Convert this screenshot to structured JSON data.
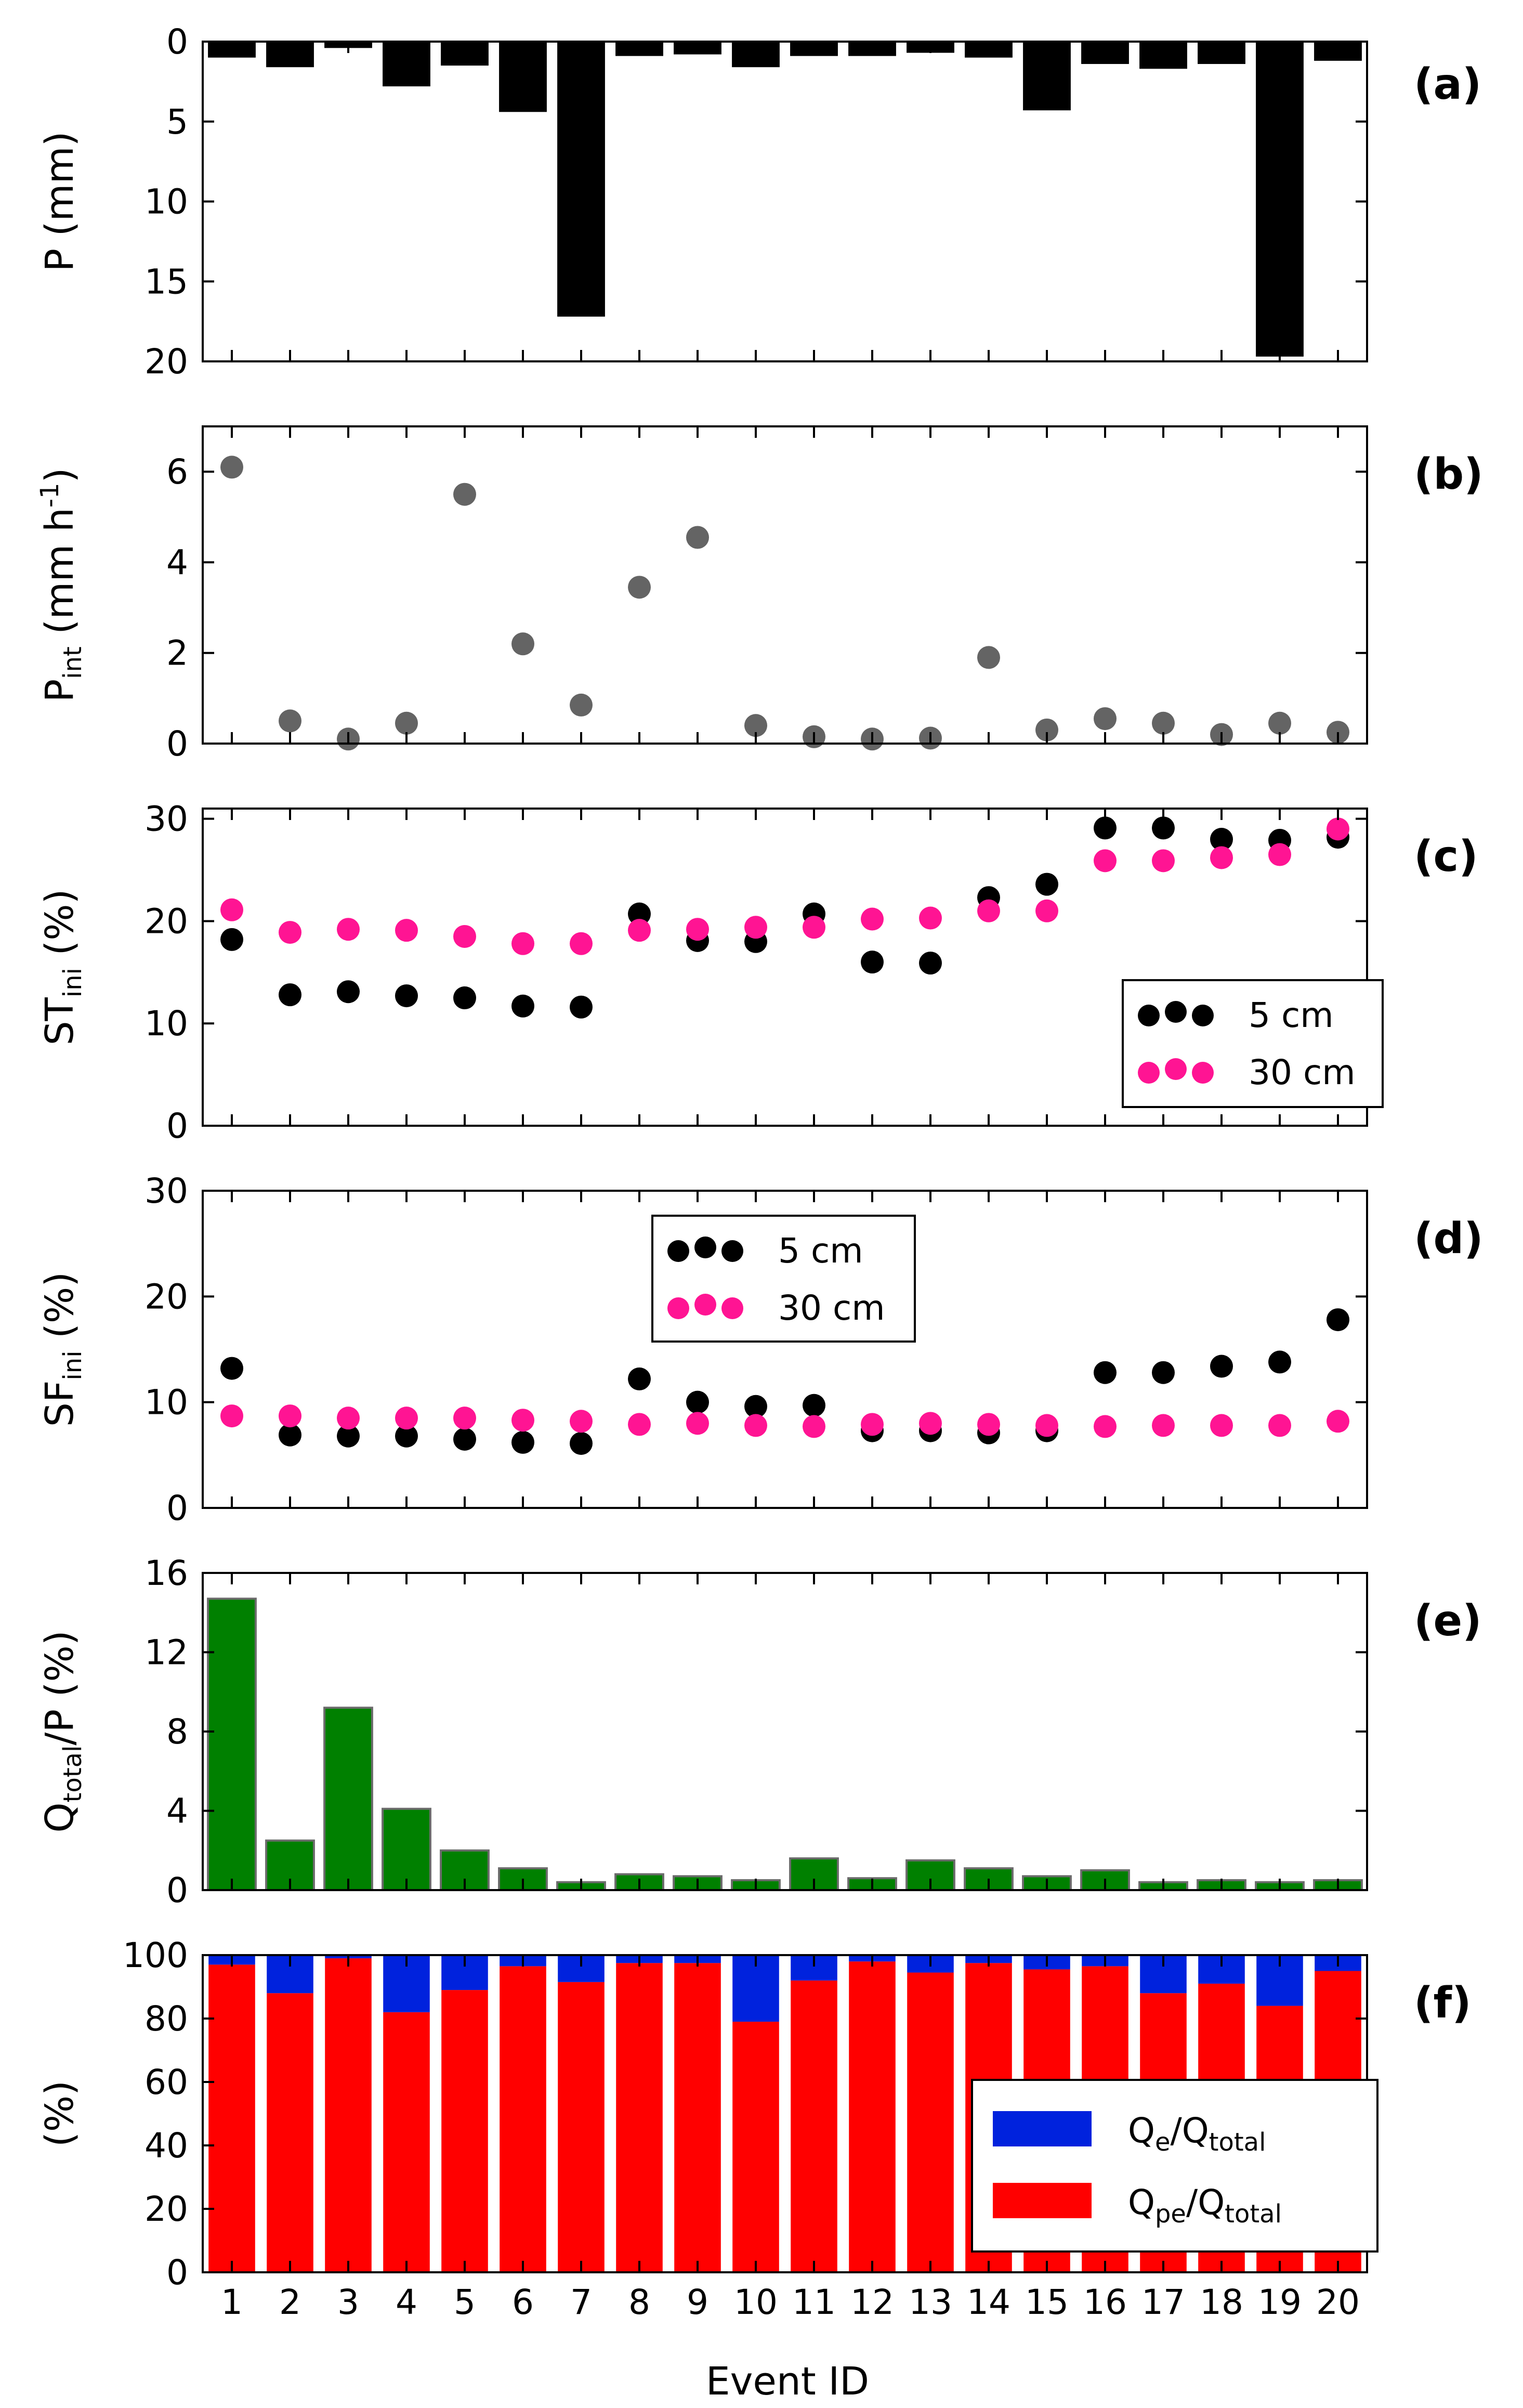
{
  "figure": {
    "xlabel": "Event ID"
  },
  "chart_data": [
    {
      "id": "a",
      "type": "bar",
      "panel_label": "(a)",
      "title": "",
      "ylabel": "P (mm)",
      "ylim": [
        0,
        20
      ],
      "y_inverted": true,
      "yticks": [
        0,
        5,
        10,
        15,
        20
      ],
      "xticks": [],
      "color": "#000000",
      "categories": [
        1,
        2,
        3,
        4,
        5,
        6,
        7,
        8,
        9,
        10,
        11,
        12,
        13,
        14,
        15,
        16,
        17,
        18,
        19,
        20
      ],
      "values": [
        1.0,
        1.6,
        0.4,
        2.8,
        1.5,
        4.4,
        17.2,
        0.9,
        0.8,
        1.6,
        0.9,
        0.9,
        0.7,
        1.0,
        4.3,
        1.4,
        1.7,
        1.4,
        19.7,
        1.2
      ]
    },
    {
      "id": "b",
      "type": "scatter",
      "panel_label": "(b)",
      "ylabel_main": "P",
      "ylabel_sub": "int",
      "ylabel_rest": " (mm h",
      "ylabel_sup": "-1",
      "ylabel_end": ")",
      "ylim": [
        0,
        7
      ],
      "yticks": [
        0,
        2,
        4,
        6
      ],
      "xticks": [],
      "series": [
        {
          "name": "P_int",
          "color": "#646464",
          "x": [
            1,
            2,
            3,
            4,
            5,
            6,
            7,
            8,
            9,
            10,
            11,
            12,
            13,
            14,
            15,
            16,
            17,
            18,
            19,
            20
          ],
          "values": [
            6.1,
            0.5,
            0.1,
            0.45,
            5.5,
            2.2,
            0.85,
            3.45,
            4.55,
            0.4,
            0.15,
            0.1,
            0.12,
            1.9,
            0.3,
            0.55,
            0.45,
            0.2,
            0.45,
            0.25
          ]
        }
      ]
    },
    {
      "id": "c",
      "type": "scatter",
      "panel_label": "(c)",
      "ylabel_main": "ST",
      "ylabel_sub": "ini",
      "ylabel_rest": " (%)",
      "ylim": [
        0,
        31
      ],
      "yticks": [
        0,
        10,
        20,
        30
      ],
      "xticks": [],
      "legend": "bottom-right",
      "series": [
        {
          "name": "5 cm",
          "color": "#000000",
          "x": [
            1,
            2,
            3,
            4,
            5,
            6,
            7,
            8,
            9,
            10,
            11,
            12,
            13,
            14,
            15,
            16,
            17,
            18,
            19,
            20
          ],
          "values": [
            18.2,
            12.8,
            13.1,
            12.7,
            12.5,
            11.7,
            11.6,
            20.7,
            18.1,
            18.0,
            20.7,
            16.0,
            15.9,
            22.3,
            23.6,
            29.1,
            29.1,
            28.0,
            27.9,
            28.2
          ]
        },
        {
          "name": "30 cm",
          "color": "#ff1493",
          "x": [
            1,
            2,
            3,
            4,
            5,
            6,
            7,
            8,
            9,
            10,
            11,
            12,
            13,
            14,
            15,
            16,
            17,
            18,
            19,
            20
          ],
          "values": [
            21.1,
            18.9,
            19.2,
            19.1,
            18.5,
            17.8,
            17.8,
            19.1,
            19.2,
            19.4,
            19.4,
            20.2,
            20.3,
            21.0,
            21.0,
            25.9,
            25.9,
            26.2,
            26.5,
            29.0
          ]
        }
      ]
    },
    {
      "id": "d",
      "type": "scatter",
      "panel_label": "(d)",
      "ylabel_main": "SF",
      "ylabel_sub": "ini",
      "ylabel_rest": " (%)",
      "ylim": [
        0,
        30
      ],
      "yticks": [
        0,
        10,
        20,
        30
      ],
      "xticks": [],
      "legend": "upper-center",
      "series": [
        {
          "name": "5 cm",
          "color": "#000000",
          "x": [
            1,
            2,
            3,
            4,
            5,
            6,
            7,
            8,
            9,
            10,
            11,
            12,
            13,
            14,
            15,
            16,
            17,
            18,
            19,
            20
          ],
          "values": [
            13.2,
            6.9,
            6.8,
            6.8,
            6.5,
            6.2,
            6.1,
            12.2,
            10.0,
            9.6,
            9.7,
            7.3,
            7.3,
            7.1,
            7.3,
            12.8,
            12.8,
            13.4,
            13.8,
            17.8
          ]
        },
        {
          "name": "30 cm",
          "color": "#ff1493",
          "x": [
            1,
            2,
            3,
            4,
            5,
            6,
            7,
            8,
            9,
            10,
            11,
            12,
            13,
            14,
            15,
            16,
            17,
            18,
            19,
            20
          ],
          "values": [
            8.7,
            8.7,
            8.5,
            8.5,
            8.5,
            8.3,
            8.2,
            7.9,
            8.0,
            7.8,
            7.7,
            7.9,
            8.0,
            7.9,
            7.8,
            7.7,
            7.8,
            7.8,
            7.8,
            8.2
          ]
        }
      ]
    },
    {
      "id": "e",
      "type": "bar",
      "panel_label": "(e)",
      "ylabel_main": "Q",
      "ylabel_sub": "total",
      "ylabel_rest": "/P (%)",
      "ylim": [
        0,
        16
      ],
      "yticks": [
        0,
        4,
        8,
        12,
        16
      ],
      "xticks": [],
      "color": "#008000",
      "categories": [
        1,
        2,
        3,
        4,
        5,
        6,
        7,
        8,
        9,
        10,
        11,
        12,
        13,
        14,
        15,
        16,
        17,
        18,
        19,
        20
      ],
      "values": [
        14.7,
        2.5,
        9.2,
        4.1,
        2.0,
        1.1,
        0.4,
        0.8,
        0.7,
        0.5,
        1.6,
        0.6,
        1.5,
        1.1,
        0.7,
        1.0,
        0.4,
        0.5,
        0.4,
        0.5
      ]
    },
    {
      "id": "f",
      "type": "stacked-bar",
      "panel_label": "(f)",
      "ylabel": "(%)",
      "ylim": [
        0,
        100
      ],
      "yticks": [
        0,
        20,
        40,
        60,
        80,
        100
      ],
      "xticks": [
        "1",
        "2",
        "3",
        "4",
        "5",
        "6",
        "7",
        "8",
        "9",
        "10",
        "11",
        "12",
        "13",
        "14",
        "15",
        "16",
        "17",
        "18",
        "19",
        "20"
      ],
      "legend": "lower-right",
      "categories": [
        1,
        2,
        3,
        4,
        5,
        6,
        7,
        8,
        9,
        10,
        11,
        12,
        13,
        14,
        15,
        16,
        17,
        18,
        19,
        20
      ],
      "series": [
        {
          "name_main": "Q",
          "name_sub": "pe",
          "name_rest": "/Q",
          "name_sub2": "total",
          "color": "#ff0000",
          "values": [
            97,
            88,
            99,
            82,
            89,
            96.5,
            91.5,
            97.5,
            97.5,
            79,
            92,
            98,
            94.5,
            97.5,
            95.5,
            96.5,
            88,
            91,
            84,
            95
          ]
        },
        {
          "name_main": "Q",
          "name_sub": "e",
          "name_rest": "/Q",
          "name_sub2": "total",
          "color": "#0022dd",
          "values": [
            3,
            12,
            1,
            18,
            11,
            3.5,
            8.5,
            2.5,
            2.5,
            21,
            8,
            2,
            5.5,
            2.5,
            4.5,
            3.5,
            12,
            9,
            16,
            5
          ]
        }
      ]
    }
  ]
}
